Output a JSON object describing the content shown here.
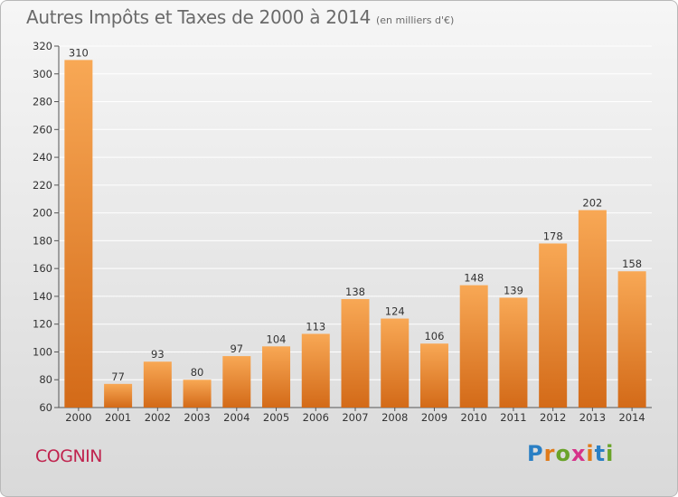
{
  "title": "Autres Impôts et Taxes de 2000 à 2014",
  "subtitle": "(en milliers d'€)",
  "commune": "COGNIN",
  "logo": {
    "letters": [
      "P",
      "r",
      "o",
      "x",
      "i",
      "t",
      "i"
    ],
    "colors": [
      "#2a7fc4",
      "#e07b1a",
      "#6aa329",
      "#d6338a",
      "#e07b1a",
      "#2a7fc4",
      "#6aa329"
    ]
  },
  "colors": {
    "bar_light": "#f7a552",
    "bar_dark": "#d66e1b",
    "grid": "#ffffff",
    "commune": "#c0234e"
  },
  "chart_data": {
    "type": "bar",
    "title": "Autres Impôts et Taxes de 2000 à 2014",
    "subtitle": "(en milliers d'€)",
    "categories": [
      "2000",
      "2001",
      "2002",
      "2003",
      "2004",
      "2005",
      "2006",
      "2007",
      "2008",
      "2009",
      "2010",
      "2011",
      "2012",
      "2013",
      "2014"
    ],
    "values": [
      310,
      77,
      93,
      80,
      97,
      104,
      113,
      138,
      124,
      106,
      148,
      139,
      178,
      202,
      158
    ],
    "ylim": [
      60,
      320
    ],
    "yticks": [
      60,
      80,
      100,
      120,
      140,
      160,
      180,
      200,
      220,
      240,
      260,
      280,
      300,
      320
    ],
    "grid": true,
    "data_labels": true
  }
}
